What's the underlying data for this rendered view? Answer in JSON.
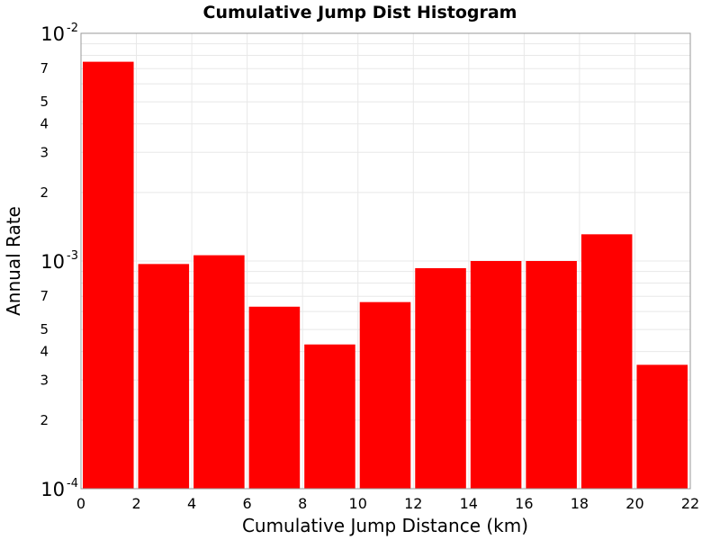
{
  "chart_data": {
    "type": "bar",
    "title": "Cumulative Jump Dist Histogram",
    "xlabel": "Cumulative Jump Distance (km)",
    "ylabel": "Annual Rate",
    "yscale": "log",
    "xlim": [
      0,
      22
    ],
    "ylim": [
      0.0001,
      0.01
    ],
    "grid": true,
    "bar_color": "#ff0000",
    "x_ticks": [
      0,
      2,
      4,
      6,
      8,
      10,
      12,
      14,
      16,
      18,
      20,
      22
    ],
    "y_major_ticks": [
      {
        "base": "10",
        "exp": "-2",
        "value": 0.01
      },
      {
        "base": "10",
        "exp": "-3",
        "value": 0.001
      },
      {
        "base": "10",
        "exp": "-4",
        "value": 0.0001
      }
    ],
    "y_minor_tick_labels": [
      {
        "label": "7",
        "value": 0.007
      },
      {
        "label": "5",
        "value": 0.005
      },
      {
        "label": "4",
        "value": 0.004
      },
      {
        "label": "3",
        "value": 0.003
      },
      {
        "label": "2",
        "value": 0.002
      },
      {
        "label": "7",
        "value": 0.0007
      },
      {
        "label": "5",
        "value": 0.0005
      },
      {
        "label": "4",
        "value": 0.0004
      },
      {
        "label": "3",
        "value": 0.0003
      },
      {
        "label": "2",
        "value": 0.0002
      }
    ],
    "bars": [
      {
        "x0": 0,
        "x1": 2,
        "value": 0.0075
      },
      {
        "x0": 2,
        "x1": 4,
        "value": 0.00097
      },
      {
        "x0": 4,
        "x1": 6,
        "value": 0.00106
      },
      {
        "x0": 6,
        "x1": 8,
        "value": 0.00063
      },
      {
        "x0": 8,
        "x1": 10,
        "value": 0.00043
      },
      {
        "x0": 10,
        "x1": 12,
        "value": 0.00066
      },
      {
        "x0": 12,
        "x1": 14,
        "value": 0.00093
      },
      {
        "x0": 14,
        "x1": 16,
        "value": 0.001
      },
      {
        "x0": 16,
        "x1": 18,
        "value": 0.001
      },
      {
        "x0": 18,
        "x1": 20,
        "value": 0.00131
      },
      {
        "x0": 20,
        "x1": 22,
        "value": 0.00035
      }
    ]
  }
}
